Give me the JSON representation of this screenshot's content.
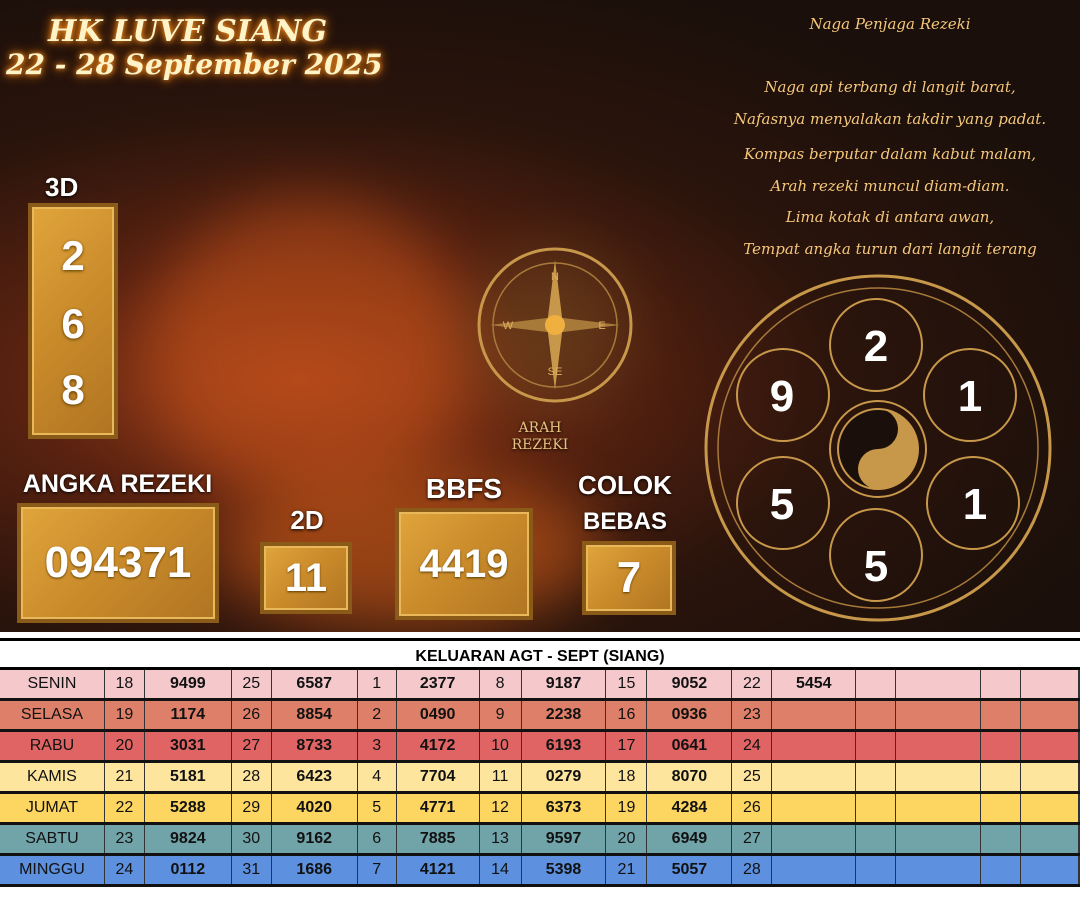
{
  "header": {
    "title": "HK LUVE SIANG",
    "date_range": "22 - 28 September 2025"
  },
  "poem": {
    "title": "Naga Penjaga Rezeki",
    "lines": [
      "Naga api terbang di langit barat,",
      "Nafasnya menyalakan takdir yang padat.",
      "Kompas berputar dalam kabut malam,",
      "Arah rezeki muncul diam-diam.",
      "Lima kotak di antara awan,",
      "Tempat angka turun dari langit terang"
    ]
  },
  "prediction": {
    "label_3d": "3D",
    "digits_3d": [
      "2",
      "6",
      "8"
    ],
    "label_angka": "ANGKA REZEKI",
    "angka": "094371",
    "label_2d": "2D",
    "value_2d": "11",
    "label_bbfs": "BBFS",
    "bbfs": "4419",
    "label_colok": "COLOK",
    "label_bebas": "BEBAS",
    "colok": "7"
  },
  "compass": {
    "label_line1": "ARAH",
    "label_line2": "REZEKI",
    "n": "N",
    "w": "W",
    "e": "E",
    "s": "SE"
  },
  "wheel": {
    "top": "2",
    "top_right": "1",
    "bottom_right": "1",
    "bottom": "5",
    "bottom_left": "5",
    "top_left": "9"
  },
  "table": {
    "title": "KELUARAN AGT - SEPT (SIANG)",
    "rows": [
      {
        "day": "SENIN",
        "color": "#f5c9cc",
        "cells": [
          "18",
          "9499",
          "25",
          "6587",
          "1",
          "2377",
          "8",
          "9187",
          "15",
          "9052",
          "22",
          "5454"
        ]
      },
      {
        "day": "SELASA",
        "color": "#de8069",
        "cells": [
          "19",
          "1174",
          "26",
          "8854",
          "2",
          "0490",
          "9",
          "2238",
          "16",
          "0936",
          "23",
          ""
        ]
      },
      {
        "day": "RABU",
        "color": "#e06464",
        "cells": [
          "20",
          "3031",
          "27",
          "8733",
          "3",
          "4172",
          "10",
          "6193",
          "17",
          "0641",
          "24",
          ""
        ]
      },
      {
        "day": "KAMIS",
        "color": "#fde59e",
        "cells": [
          "21",
          "5181",
          "28",
          "6423",
          "4",
          "7704",
          "11",
          "0279",
          "18",
          "8070",
          "25",
          ""
        ]
      },
      {
        "day": "JUMAT",
        "color": "#fcd660",
        "cells": [
          "22",
          "5288",
          "29",
          "4020",
          "5",
          "4771",
          "12",
          "6373",
          "19",
          "4284",
          "26",
          ""
        ]
      },
      {
        "day": "SABTU",
        "color": "#70a4a9",
        "cells": [
          "23",
          "9824",
          "30",
          "9162",
          "6",
          "7885",
          "13",
          "9597",
          "20",
          "6949",
          "27",
          ""
        ]
      },
      {
        "day": "MINGGU",
        "color": "#5d90de",
        "cells": [
          "24",
          "0112",
          "31",
          "1686",
          "7",
          "4121",
          "14",
          "5398",
          "21",
          "5057",
          "28",
          ""
        ]
      }
    ]
  }
}
